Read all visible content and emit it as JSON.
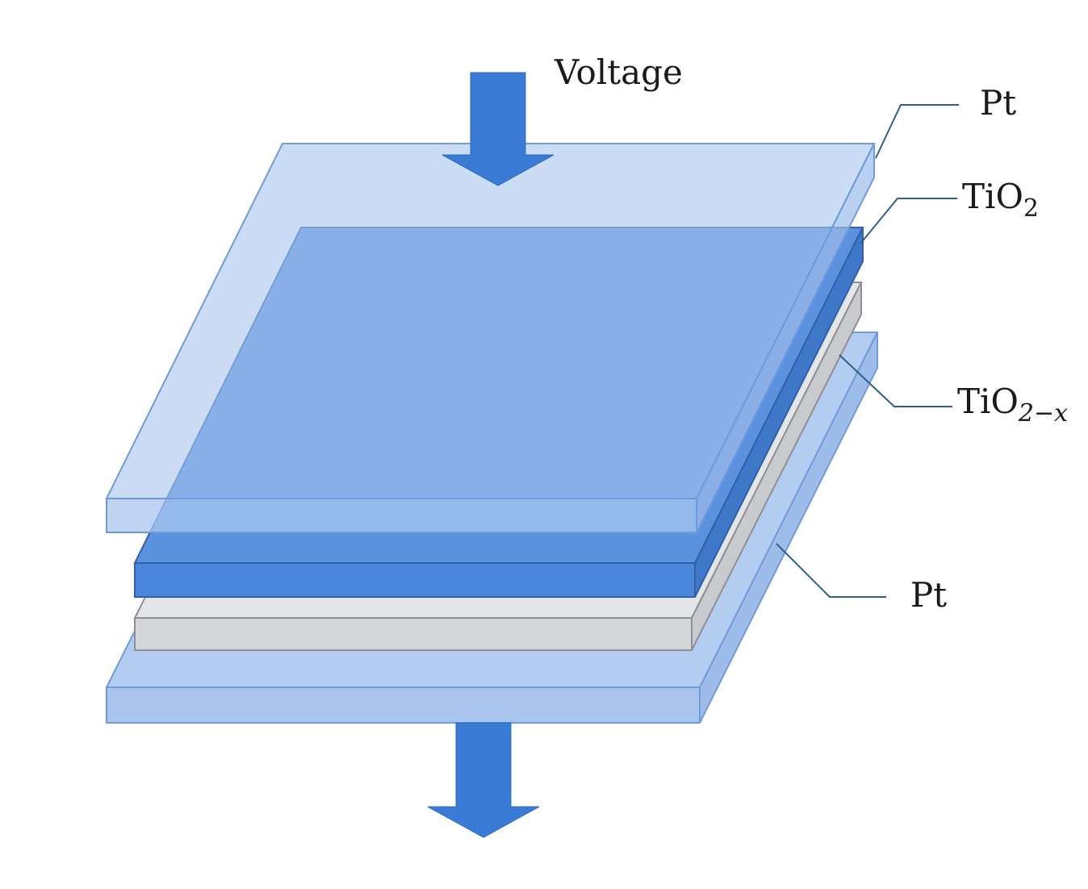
{
  "labels": {
    "voltage": "Voltage",
    "top_pt": "Pt",
    "tio2_base": "TiO",
    "tio2_sub": "2",
    "tio2x_base": "TiO",
    "tio2x_sub": "2−x",
    "bottom_pt": "Pt"
  },
  "colors": {
    "pt_layer": "#a9c5ee",
    "pt_edge": "#5b8fd6",
    "tio2_layer": "#4a86d9",
    "tio2_edge": "#2f5fa8",
    "tio2x_layer": "#d4d6da",
    "tio2x_edge": "#8e9096",
    "arrow": "#3a7bd5",
    "leader_line": "#2f5f88"
  }
}
